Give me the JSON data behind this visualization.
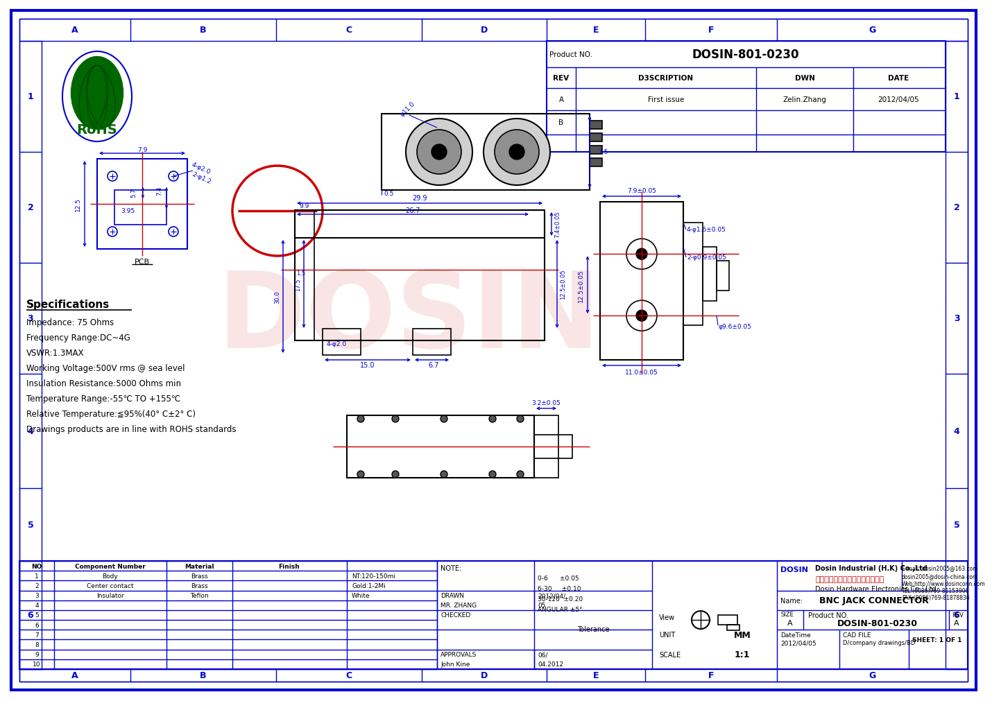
{
  "bg_color": "#ffffff",
  "blue": "#0000cd",
  "red": "#cc0000",
  "black": "#000000",
  "green": "#006600",
  "title_block": {
    "product_no": "DOSIN-801-0230",
    "rev_col": "REV",
    "desc_col": "D3SCRIPTION",
    "dwn_col": "DWN",
    "date_col": "DATE",
    "row_a_desc": "First issue",
    "row_a_dwn": "Zelin.Zhang",
    "row_a_date": "2012/04/05",
    "name": "BNC JACK CONNECTOR",
    "product_no2": "DOSIN-801-0230",
    "dosin_eng": "Dosin Industrial (H.K) Co.,Ltd",
    "dosin_cn": "东莞市德讯五金电子制品有限公司",
    "dosin_hw": "Dosin Hardware Electronics Co., Ltd",
    "email1": "E-mail: dosin2005@163.com",
    "email2": "dosin2005@dosin-china.com",
    "web": "Web:http://www.dosinconn.com",
    "tel": "TEL:(0086)769-81153906",
    "fax": "FAX:(0086)769-81878836",
    "tol_06": "0-6      ±0.05",
    "tol_630": "6-30     ±0.10",
    "tol_30120": "30-120  ±0.20",
    "tol_angular": "ANGULAR ±5°"
  },
  "bom_rows": [
    [
      "1",
      "Body",
      "Brass",
      "NT:120-150mi"
    ],
    [
      "2",
      "Center contact",
      "Brass",
      "Gold:1-2Mi"
    ],
    [
      "3",
      "Insulator",
      "Teflon",
      "White"
    ],
    [
      "4",
      "",
      "",
      ""
    ],
    [
      "5",
      "",
      "",
      ""
    ],
    [
      "6",
      "",
      "",
      ""
    ],
    [
      "7",
      "",
      "",
      ""
    ],
    [
      "8",
      "",
      "",
      ""
    ],
    [
      "9",
      "",
      "",
      ""
    ],
    [
      "10",
      "",
      "",
      ""
    ]
  ],
  "specs": [
    "Specifications",
    "Impedance: 75 Ohms",
    "Frequency Range:DC~4G",
    "VSWR:1.3MAX",
    "Working Voltage:500V rms @ sea level",
    "Insulation Resistance:5000 Ohms min",
    "Temperature Range:-55℃ TO +155℃",
    "Relative Temperature:≦95%(40° C±2° C)",
    "Drawings products are in line with ROHS standards"
  ],
  "grid_cols": [
    "A",
    "B",
    "C",
    "D",
    "E",
    "F",
    "G"
  ],
  "grid_rows": [
    "1",
    "2",
    "3",
    "4",
    "5",
    "6"
  ]
}
